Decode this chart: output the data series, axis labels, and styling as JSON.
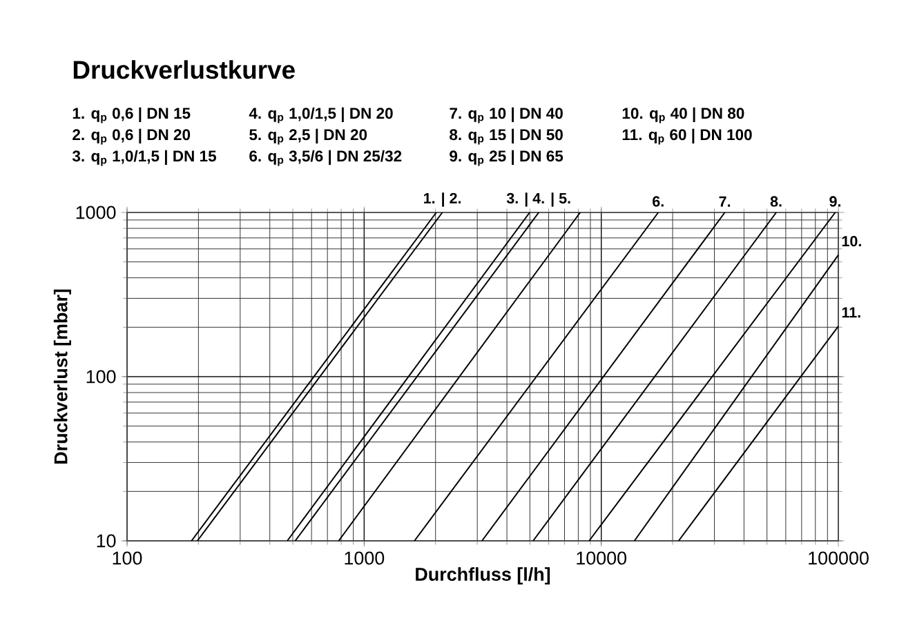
{
  "chart_data": {
    "type": "line",
    "title": "Druckverlustkurve",
    "xlabel": "Durchfluss [l/h]",
    "ylabel": "Druckverlust [mbar]",
    "log": "xy",
    "grid": true,
    "marker": "none",
    "line_style": "solid",
    "xlim": [
      100,
      100000
    ],
    "ylim": [
      10,
      1000
    ],
    "xticks": [
      100,
      1000,
      10000,
      100000
    ],
    "yticks": [
      10,
      100,
      1000
    ],
    "series": [
      {
        "color": "#000000",
        "x": [
          187,
          2015
        ],
        "values": [
          10,
          1000
        ]
      },
      {
        "color": "#000000",
        "x": [
          198,
          2137
        ],
        "values": [
          10,
          1000
        ]
      },
      {
        "color": "#000000",
        "x": [
          474,
          4990
        ],
        "values": [
          10,
          1000
        ]
      },
      {
        "color": "#000000",
        "x": [
          512,
          5450
        ],
        "values": [
          10,
          1000
        ]
      },
      {
        "color": "#000000",
        "x": [
          781,
          8150
        ],
        "values": [
          10,
          1000
        ]
      },
      {
        "color": "#000000",
        "x": [
          1630,
          17400
        ],
        "values": [
          10,
          1000
        ]
      },
      {
        "color": "#000000",
        "x": [
          3140,
          33200
        ],
        "values": [
          10,
          1000
        ]
      },
      {
        "color": "#000000",
        "x": [
          5160,
          54700
        ],
        "values": [
          10,
          1000
        ]
      },
      {
        "color": "#000000",
        "x": [
          8890,
          97000
        ],
        "values": [
          10,
          1000
        ]
      },
      {
        "color": "#000000",
        "x": [
          13800,
          100000
        ],
        "values": [
          10,
          551
        ]
      },
      {
        "color": "#000000",
        "x": [
          21200,
          100000
        ],
        "values": [
          10,
          203
        ]
      }
    ],
    "annotations": [
      "1. q$_{p}$ 0,6 | DN 15",
      "2. q$_{p}$ 0,6 | DN 20",
      "3. q$_{p}$ 1,0/1,5 | DN 15",
      "4. q$_{p}$ 1,0/1,5 | DN 20",
      "5. q$_{p}$ 2,5 | DN 20",
      "6. q$_{p}$ 3,5/6 | DN 25/32",
      "7. q$_{p}$ 10 | DN 40",
      "8. q$_{p}$ 15 | DN 50",
      "9. q$_{p}$ 25 | DN 65",
      "10. q$_{p}$ 40 | DN 80",
      "11. q$_{p}$ 60 | DN 100",
      {
        "text": "1. | 2.",
        "x": 2137,
        "y": 1000
      },
      {
        "text": "3. | 4. | 5.",
        "x": 5450,
        "y": 1000
      },
      {
        "text": "6.",
        "x": 17400,
        "y": 1000
      },
      {
        "text": "7.",
        "x": 33200,
        "y": 1000
      },
      {
        "text": "8.",
        "x": 54700,
        "y": 1000
      },
      {
        "text": "9.",
        "x": 97000,
        "y": 1000
      },
      {
        "text": "10.",
        "x": 100000,
        "y": 551
      },
      {
        "text": "11.",
        "x": 100000,
        "y": 203
      }
    ]
  }
}
